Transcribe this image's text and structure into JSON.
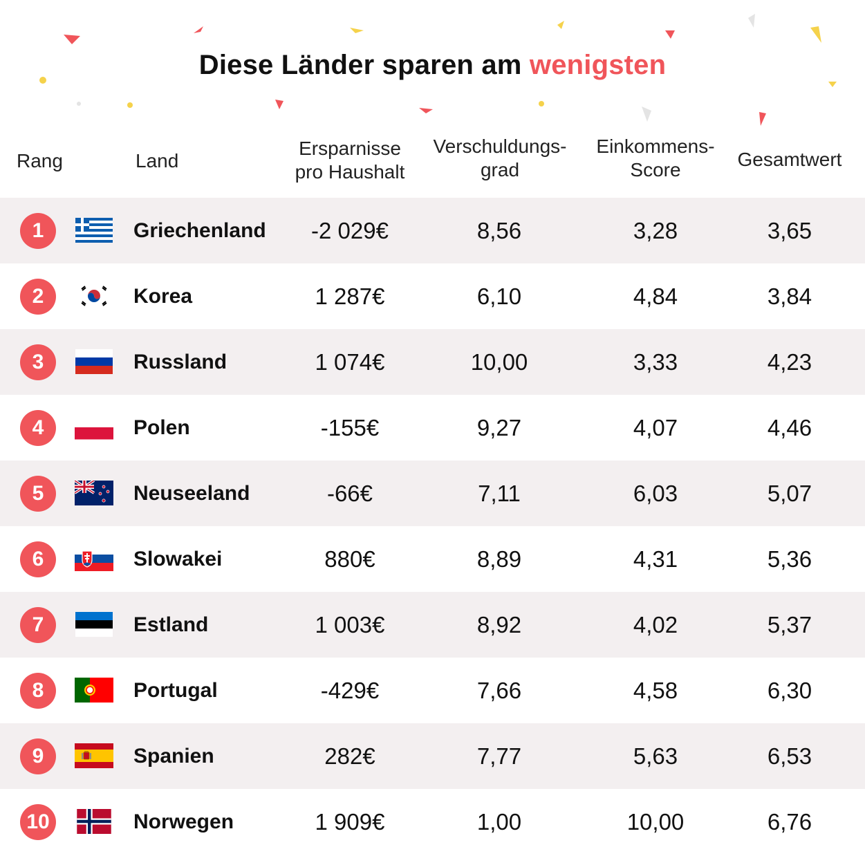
{
  "title": {
    "main": "Diese Länder sparen am ",
    "accent": "wenigsten"
  },
  "colors": {
    "accent": "#f0555a",
    "shaded_row": "#f3eff0",
    "confetti_yellow": "#f5d24b",
    "confetti_gray": "#e4e4e4"
  },
  "headers": {
    "rank": "Rang",
    "country": "Land",
    "savings_line1": "Ersparnisse",
    "savings_line2": "pro Haushalt",
    "debt_line1": "Verschuldungs-",
    "debt_line2": "grad",
    "income_line1": "Einkommens-",
    "income_line2": "Score",
    "total": "Gesamtwert"
  },
  "rows": [
    {
      "rank": "1",
      "flag": "greece-flag-icon",
      "country": "Griechenland",
      "savings": "-2 029€",
      "debt": "8,56",
      "income": "3,28",
      "total": "3,65"
    },
    {
      "rank": "2",
      "flag": "korea-flag-icon",
      "country": "Korea",
      "savings": "1 287€",
      "debt": "6,10",
      "income": "4,84",
      "total": "3,84"
    },
    {
      "rank": "3",
      "flag": "russia-flag-icon",
      "country": "Russland",
      "savings": "1 074€",
      "debt": "10,00",
      "income": "3,33",
      "total": "4,23"
    },
    {
      "rank": "4",
      "flag": "poland-flag-icon",
      "country": "Polen",
      "savings": "-155€",
      "debt": "9,27",
      "income": "4,07",
      "total": "4,46"
    },
    {
      "rank": "5",
      "flag": "new-zealand-flag-icon",
      "country": "Neuseeland",
      "savings": "-66€",
      "debt": "7,11",
      "income": "6,03",
      "total": "5,07"
    },
    {
      "rank": "6",
      "flag": "slovakia-flag-icon",
      "country": "Slowakei",
      "savings": "880€",
      "debt": "8,89",
      "income": "4,31",
      "total": "5,36"
    },
    {
      "rank": "7",
      "flag": "estonia-flag-icon",
      "country": "Estland",
      "savings": "1 003€",
      "debt": "8,92",
      "income": "4,02",
      "total": "5,37"
    },
    {
      "rank": "8",
      "flag": "portugal-flag-icon",
      "country": "Portugal",
      "savings": "-429€",
      "debt": "7,66",
      "income": "4,58",
      "total": "6,30"
    },
    {
      "rank": "9",
      "flag": "spain-flag-icon",
      "country": "Spanien",
      "savings": "282€",
      "debt": "7,77",
      "income": "5,63",
      "total": "6,53"
    },
    {
      "rank": "10",
      "flag": "norway-flag-icon",
      "country": "Norwegen",
      "savings": "1 909€",
      "debt": "1,00",
      "income": "10,00",
      "total": "6,76"
    }
  ],
  "chart_data": {
    "type": "table",
    "title": "Diese Länder sparen am wenigsten",
    "columns": [
      "Rang",
      "Land",
      "Ersparnisse pro Haushalt",
      "Verschuldungsgrad",
      "Einkommens-Score",
      "Gesamtwert"
    ],
    "categories": [
      "Griechenland",
      "Korea",
      "Russland",
      "Polen",
      "Neuseeland",
      "Slowakei",
      "Estland",
      "Portugal",
      "Spanien",
      "Norwegen"
    ],
    "series": [
      {
        "name": "Ersparnisse pro Haushalt",
        "values": [
          -2029,
          1287,
          1074,
          -155,
          -66,
          880,
          1003,
          -429,
          282,
          1909
        ]
      },
      {
        "name": "Verschuldungsgrad",
        "values": [
          8.56,
          6.1,
          10.0,
          9.27,
          7.11,
          8.89,
          8.92,
          7.66,
          7.77,
          1.0
        ]
      },
      {
        "name": "Einkommens-Score",
        "values": [
          3.28,
          4.84,
          3.33,
          4.07,
          6.03,
          4.31,
          4.02,
          4.58,
          5.63,
          10.0
        ]
      },
      {
        "name": "Gesamtwert",
        "values": [
          3.65,
          3.84,
          4.23,
          4.46,
          5.07,
          5.36,
          5.37,
          6.3,
          6.53,
          6.76
        ]
      }
    ]
  }
}
